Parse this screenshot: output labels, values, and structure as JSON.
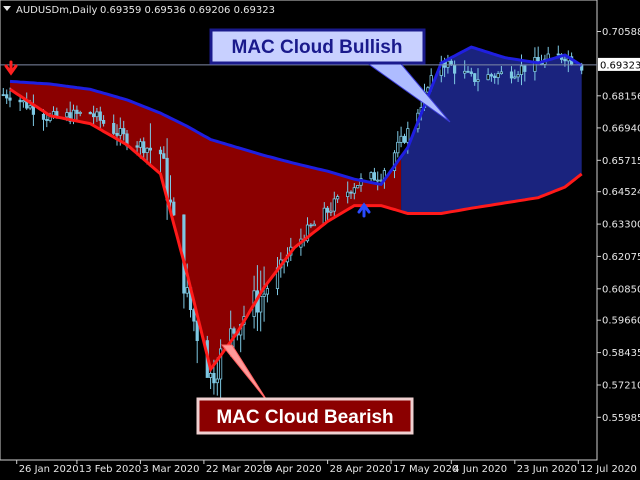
{
  "header": {
    "symbol_timeframe": "AUDUSDm,Daily",
    "ohlc": "0.69359 0.69536 0.69206 0.69323"
  },
  "current_price_label": "0.69323",
  "callouts": {
    "bullish": "MAC Cloud Bullish",
    "bearish": "MAC Cloud Bearish"
  },
  "colors": {
    "background": "#000000",
    "candles": "#7ec8e3",
    "upper_line": "#1f1fe0",
    "lower_line": "#ff1a1a",
    "bear_fill": "#8b0000",
    "bull_fill": "#1a237e",
    "arrow_down": "#ff2020",
    "arrow_up": "#2a4bff",
    "callout_bull_text": "#1a1a8c",
    "callout_bear_text": "#ffffff",
    "callout_bull_bg": "#c8d0ff",
    "callout_bear_bg": "#8b0000",
    "price_line": "#7f8aa6"
  },
  "chart_data": {
    "type": "line",
    "title": "AUDUSDm,Daily",
    "x_tick_labels": [
      "26 Jan 2020",
      "13 Feb 2020",
      "3 Mar 2020",
      "22 Mar 2020",
      "9 Apr 2020",
      "28 Apr 2020",
      "17 May 2020",
      "4 Jun 2020",
      "23 Jun 2020",
      "12 Jul 2020"
    ],
    "y_tick_labels": [
      "0.70588",
      "0.69323",
      "0.68156",
      "0.66940",
      "0.65715",
      "0.64524",
      "0.63300",
      "0.62075",
      "0.60850",
      "0.59660",
      "0.58435",
      "0.57210",
      "0.55985"
    ],
    "ylim": [
      0.549,
      0.711
    ],
    "grid": false,
    "current_price": 0.69323,
    "x": [
      "2020-01-24",
      "2020-02-05",
      "2020-02-17",
      "2020-02-28",
      "2020-03-09",
      "2020-03-17",
      "2020-03-24",
      "2020-04-01",
      "2020-04-09",
      "2020-04-18",
      "2020-04-28",
      "2020-05-06",
      "2020-05-14",
      "2020-05-22",
      "2020-06-01",
      "2020-06-10",
      "2020-06-20",
      "2020-06-30",
      "2020-07-08",
      "2020-07-13"
    ],
    "series": [
      {
        "role": "price",
        "values": [
          0.682,
          0.673,
          0.675,
          0.665,
          0.66,
          0.605,
          0.575,
          0.596,
          0.607,
          0.625,
          0.638,
          0.648,
          0.652,
          0.668,
          0.695,
          0.688,
          0.69,
          0.694,
          0.697,
          0.693
        ]
      },
      {
        "role": "upper",
        "values": [
          0.687,
          0.686,
          0.684,
          0.68,
          0.675,
          0.67,
          0.665,
          0.662,
          0.659,
          0.656,
          0.653,
          0.65,
          0.648,
          0.662,
          0.694,
          0.7,
          0.696,
          0.694,
          0.697,
          0.693
        ]
      },
      {
        "role": "lower",
        "values": [
          0.684,
          0.674,
          0.671,
          0.663,
          0.652,
          0.614,
          0.578,
          0.592,
          0.609,
          0.624,
          0.634,
          0.64,
          0.64,
          0.637,
          0.637,
          0.639,
          0.641,
          0.643,
          0.647,
          0.652
        ]
      }
    ]
  }
}
